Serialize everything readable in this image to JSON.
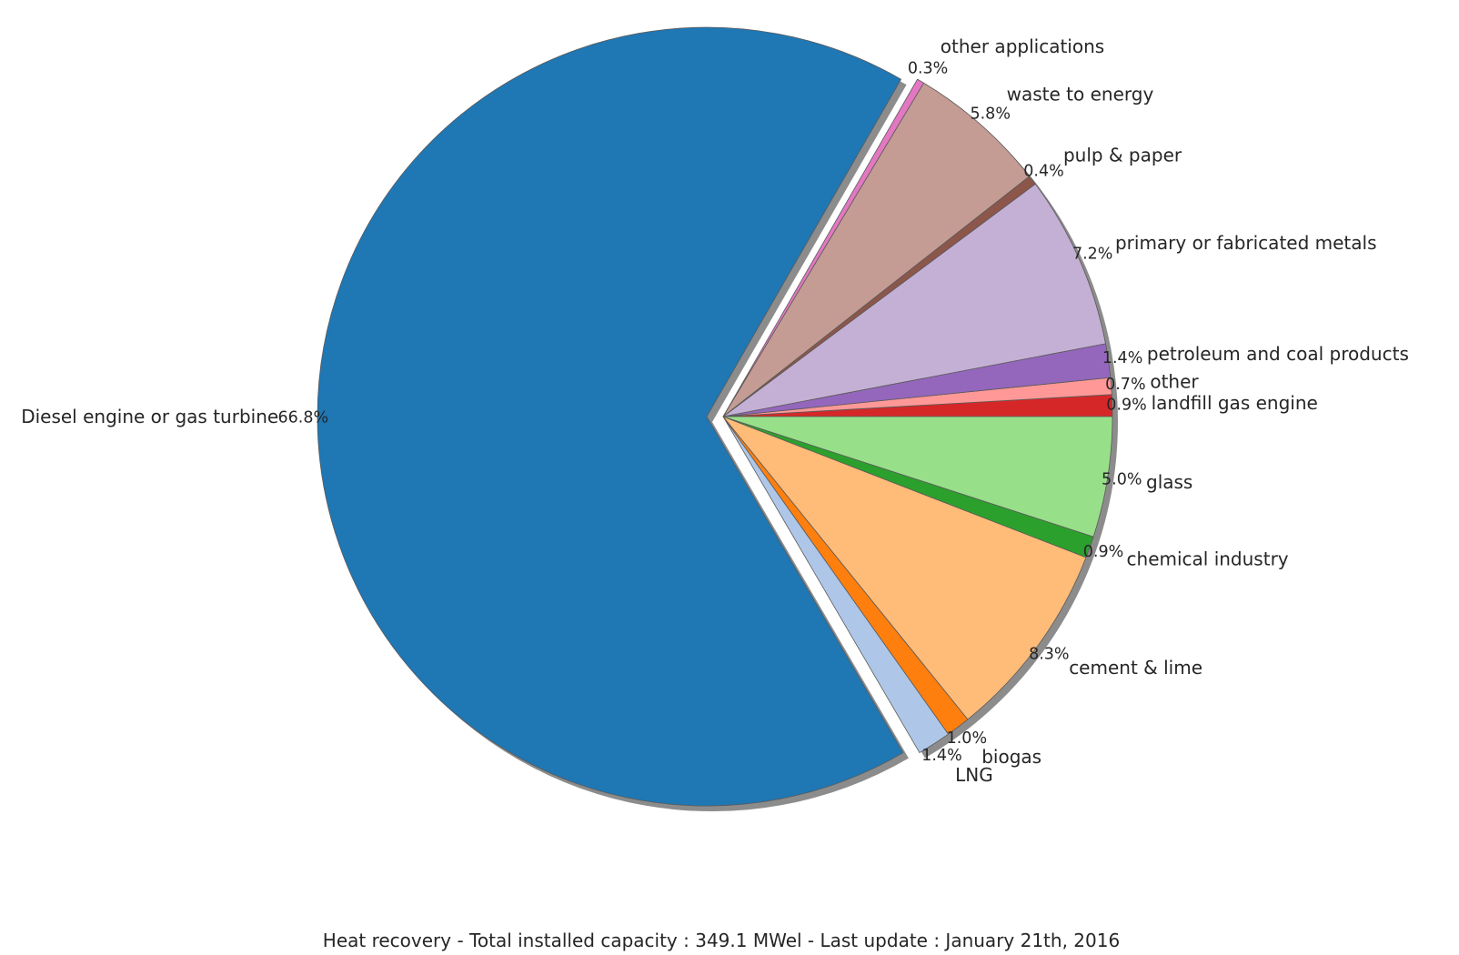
{
  "chart_data": {
    "type": "pie",
    "title": "Heat recovery - Total installed capacity : 349.1 MWel - Last update : January 21th, 2016",
    "legend": "none",
    "grid": false,
    "shadow": true,
    "exploded": [
      "Diesel engine or gas turbine"
    ],
    "slices": [
      {
        "label": "landfill gas engine",
        "percent_label": "0.9%",
        "value": 0.9,
        "color": "#d62728"
      },
      {
        "label": "other",
        "percent_label": "0.7%",
        "value": 0.7,
        "color": "#ff9896"
      },
      {
        "label": "petroleum and coal products",
        "percent_label": "1.4%",
        "value": 1.4,
        "color": "#9467bd"
      },
      {
        "label": "primary or fabricated metals",
        "percent_label": "7.2%",
        "value": 7.2,
        "color": "#c5b0d5"
      },
      {
        "label": "pulp & paper",
        "percent_label": "0.4%",
        "value": 0.4,
        "color": "#8c564b"
      },
      {
        "label": "waste to energy",
        "percent_label": "5.8%",
        "value": 5.8,
        "color": "#c49c94"
      },
      {
        "label": "other applications",
        "percent_label": "0.3%",
        "value": 0.3,
        "color": "#e377c2"
      },
      {
        "label": "Diesel engine or gas turbine",
        "percent_label": "66.8%",
        "value": 66.8,
        "color": "#1f77b4"
      },
      {
        "label": "LNG",
        "percent_label": "1.4%",
        "value": 1.4,
        "color": "#aec7e8"
      },
      {
        "label": "biogas",
        "percent_label": "1.0%",
        "value": 1.0,
        "color": "#ff7f0e"
      },
      {
        "label": "cement & lime",
        "percent_label": "8.3%",
        "value": 8.3,
        "color": "#ffbb78"
      },
      {
        "label": "chemical industry",
        "percent_label": "0.9%",
        "value": 0.9,
        "color": "#2ca02c"
      },
      {
        "label": "glass",
        "percent_label": "5.0%",
        "value": 5.0,
        "color": "#98df8a"
      }
    ]
  }
}
